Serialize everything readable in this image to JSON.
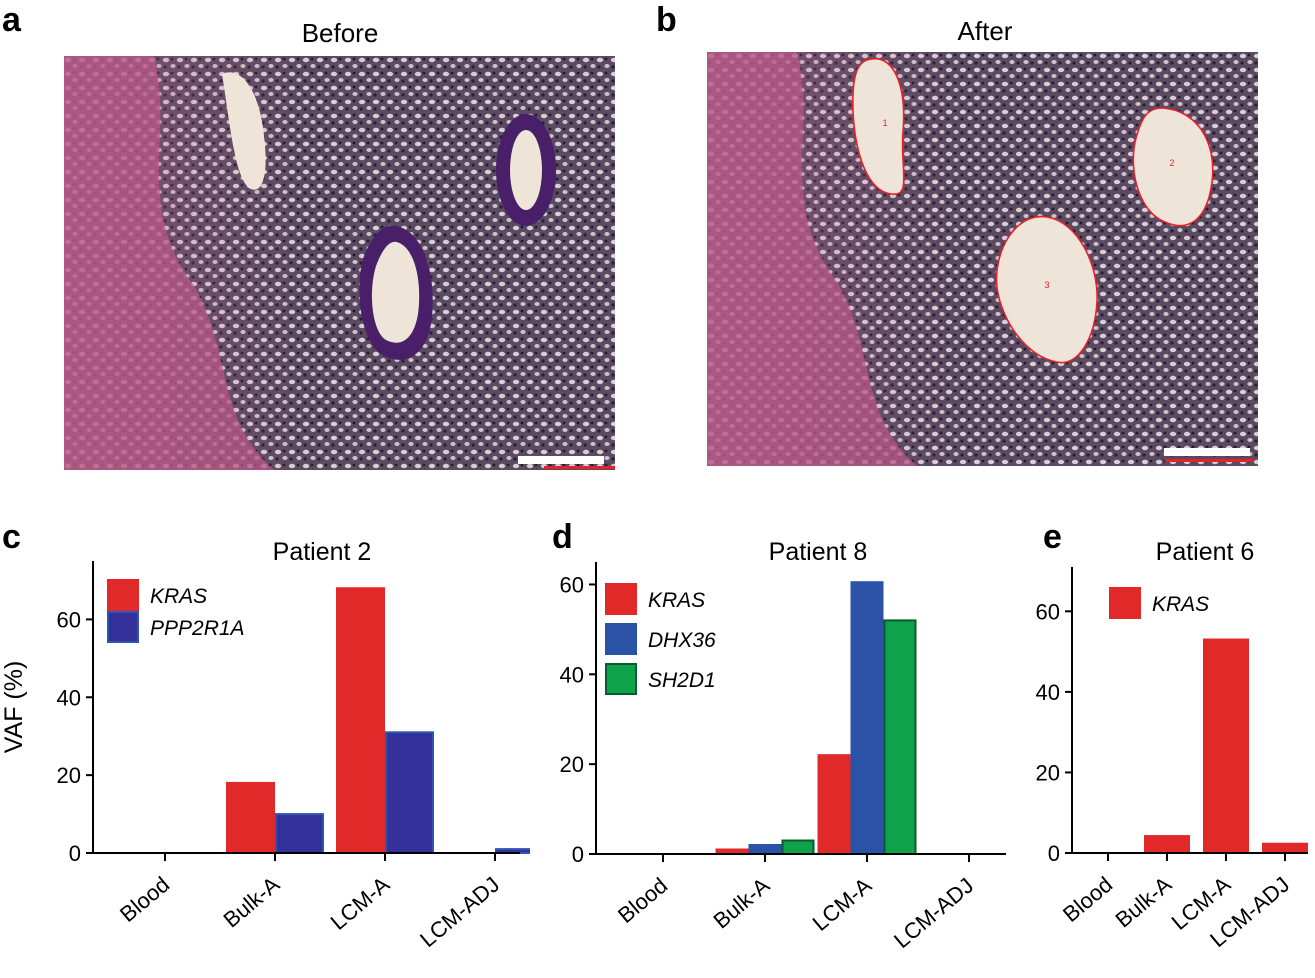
{
  "panels": {
    "a": {
      "letter": "a",
      "title": "Before"
    },
    "b": {
      "letter": "b",
      "title": "After",
      "region_labels": [
        "1",
        "2",
        "3"
      ]
    },
    "c": {
      "letter": "c"
    },
    "d": {
      "letter": "d"
    },
    "e": {
      "letter": "e"
    }
  },
  "colors": {
    "KRAS": "#e2292a",
    "PPP2R1A": "#34309a",
    "DHX36": "#2a53a8",
    "SH2D1": "#0ea24a",
    "tissue_dark": "#3a2a42",
    "tissue_pink": "#c86a94",
    "lumen": "#efe4d8",
    "outline_red": "#e8202a",
    "scale_bar": "#ffffff"
  },
  "chart_data": [
    {
      "type": "bar",
      "panel": "c",
      "title": "Patient 2",
      "ylabel": "VAF (%)",
      "xlabel": "",
      "categories": [
        "Blood",
        "Bulk-A",
        "LCM-A",
        "LCM-ADJ"
      ],
      "ylim": [
        0,
        75
      ],
      "yticks": [
        0,
        20,
        40,
        60
      ],
      "legend_position": "top-left",
      "series": [
        {
          "name": "KRAS",
          "color": "#e2292a",
          "border": "#e2292a",
          "values": [
            0,
            18,
            68,
            0
          ]
        },
        {
          "name": "PPP2R1A",
          "color": "#34309a",
          "border": "#2f55b0",
          "values": [
            0,
            10,
            31,
            1
          ]
        }
      ]
    },
    {
      "type": "bar",
      "panel": "d",
      "title": "Patient 8",
      "ylabel": "",
      "xlabel": "",
      "categories": [
        "Blood",
        "Bulk-A",
        "LCM-A",
        "LCM-ADJ"
      ],
      "ylim": [
        0,
        65
      ],
      "yticks": [
        0,
        20,
        40,
        60
      ],
      "legend_position": "top-left",
      "series": [
        {
          "name": "KRAS",
          "color": "#e2292a",
          "border": "#e2292a",
          "values": [
            0,
            1,
            22,
            0
          ]
        },
        {
          "name": "DHX36",
          "color": "#2a53a8",
          "border": "#2a53a8",
          "values": [
            0,
            2,
            60.5,
            0
          ]
        },
        {
          "name": "SH2D1",
          "color": "#0ea24a",
          "border": "#0b5a30",
          "values": [
            0,
            3,
            52,
            0
          ]
        }
      ]
    },
    {
      "type": "bar",
      "panel": "e",
      "title": "Patient 6",
      "ylabel": "",
      "xlabel": "",
      "categories": [
        "Blood",
        "Bulk-A",
        "LCM-A",
        "LCM-ADJ"
      ],
      "ylim": [
        0,
        71
      ],
      "yticks": [
        0,
        20,
        40,
        60
      ],
      "legend_position": "top-left",
      "series": [
        {
          "name": "KRAS",
          "color": "#e2292a",
          "border": "#e2292a",
          "values": [
            0,
            4.2,
            53,
            2.3
          ]
        }
      ]
    }
  ]
}
